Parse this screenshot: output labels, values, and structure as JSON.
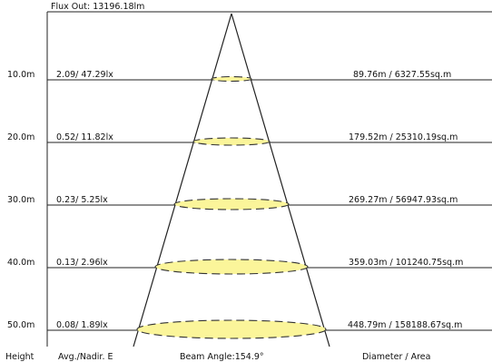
{
  "header": {
    "flux_out": "Flux Out: 13196.18lm"
  },
  "footer": {
    "height_label": "Height",
    "illuminance_label": "Avg./Nadir. E",
    "beam_angle_label": "Beam Angle:154.9°",
    "diameter_label": "Diameter / Area"
  },
  "colors": {
    "line": "#222222",
    "ellipse_fill": "#fbf59a",
    "ellipse_stroke": "#333333",
    "background": "#ffffff"
  },
  "rows": [
    {
      "height": "10.0m",
      "illuminance": "2.09/ 47.29lx",
      "diameter_area": "89.76m / 6327.55sq.m"
    },
    {
      "height": "20.0m",
      "illuminance": "0.52/ 11.82lx",
      "diameter_area": "179.52m / 25310.19sq.m"
    },
    {
      "height": "30.0m",
      "illuminance": "0.23/ 5.25lx",
      "diameter_area": "269.27m / 56947.93sq.m"
    },
    {
      "height": "40.0m",
      "illuminance": "0.13/ 2.96lx",
      "diameter_area": "359.03m / 101240.75sq.m"
    },
    {
      "height": "50.0m",
      "illuminance": "0.08/ 1.89lx",
      "diameter_area": "448.79m / 158188.67sq.m"
    }
  ]
}
